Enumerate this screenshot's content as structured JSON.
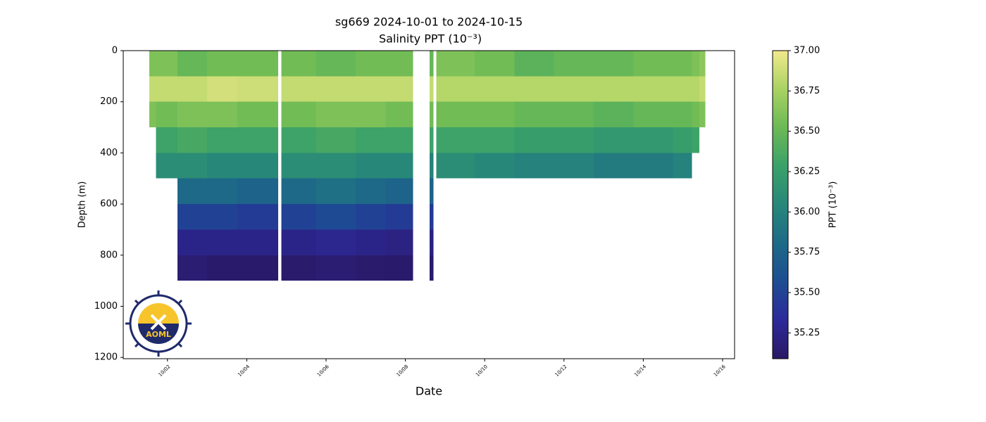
{
  "chart_data": {
    "type": "section",
    "title": "sg669 2024-10-01 to 2024-10-15",
    "subtitle": "Salinity PPT (10⁻³)",
    "x_label": "Date",
    "y_label": "Depth (m)",
    "colorbar_label": "PPT (10⁻³)",
    "xlim": [
      "2024-09-30T21:15",
      "2024-10-16T07:15"
    ],
    "xticks": [
      {
        "value": "2024-10-02",
        "label": "10/02"
      },
      {
        "value": "2024-10-04",
        "label": "10/04"
      },
      {
        "value": "2024-10-06",
        "label": "10/06"
      },
      {
        "value": "2024-10-08",
        "label": "10/08"
      },
      {
        "value": "2024-10-10",
        "label": "10/10"
      },
      {
        "value": "2024-10-12",
        "label": "10/12"
      },
      {
        "value": "2024-10-14",
        "label": "10/14"
      },
      {
        "value": "2024-10-16",
        "label": "10/16"
      }
    ],
    "ylim": [
      0,
      1205
    ],
    "y_inverted": true,
    "yticks": [
      0,
      200,
      400,
      600,
      800,
      1000,
      1200
    ],
    "clim": [
      35.09,
      37.0
    ],
    "cticks": [
      {
        "value": 35.25,
        "label": "35.25"
      },
      {
        "value": 35.5,
        "label": "35.50"
      },
      {
        "value": 35.75,
        "label": "35.75"
      },
      {
        "value": 36.0,
        "label": "36.00"
      },
      {
        "value": 36.25,
        "label": "36.25"
      },
      {
        "value": 36.5,
        "label": "36.50"
      },
      {
        "value": 36.75,
        "label": "36.75"
      },
      {
        "value": 37.0,
        "label": "37.00"
      }
    ],
    "colormap": [
      "#2a1864",
      "#2c2a9a",
      "#1d4c92",
      "#1d6a87",
      "#27877a",
      "#3aa169",
      "#6bb955",
      "#a9d262",
      "#f2e98c"
    ],
    "depth_bins": [
      0,
      100,
      200,
      300,
      400,
      500,
      600,
      700,
      800,
      900
    ],
    "columns": [
      {
        "start": "2024-10-01T13:00",
        "end": "2024-10-01T17:00",
        "values": [
          36.6,
          36.85,
          36.6,
          null,
          null,
          null,
          null,
          null,
          null
        ]
      },
      {
        "start": "2024-10-01T17:00",
        "end": "2024-10-02T06:00",
        "values": [
          36.6,
          36.85,
          36.55,
          36.3,
          36.1,
          null,
          null,
          null,
          null
        ]
      },
      {
        "start": "2024-10-02T06:00",
        "end": "2024-10-03T00:00",
        "values": [
          36.5,
          36.85,
          36.6,
          36.35,
          36.1,
          35.8,
          35.5,
          35.25,
          35.15
        ]
      },
      {
        "start": "2024-10-03T00:00",
        "end": "2024-10-03T18:00",
        "values": [
          36.55,
          36.9,
          36.6,
          36.3,
          36.05,
          35.8,
          35.5,
          35.25,
          35.12
        ]
      },
      {
        "start": "2024-10-03T18:00",
        "end": "2024-10-04T19:00",
        "values": [
          36.55,
          36.88,
          36.55,
          36.3,
          36.05,
          35.75,
          35.45,
          35.25,
          35.12
        ]
      },
      {
        "start": "2024-10-04T21:00",
        "end": "2024-10-05T18:00",
        "values": [
          36.55,
          36.85,
          36.55,
          36.3,
          36.1,
          35.8,
          35.5,
          35.25,
          35.13
        ]
      },
      {
        "start": "2024-10-05T18:00",
        "end": "2024-10-06T18:00",
        "values": [
          36.5,
          36.85,
          36.6,
          36.35,
          36.1,
          35.85,
          35.55,
          35.28,
          35.15
        ]
      },
      {
        "start": "2024-10-06T18:00",
        "end": "2024-10-07T12:00",
        "values": [
          36.55,
          36.85,
          36.6,
          36.3,
          36.05,
          35.8,
          35.5,
          35.25,
          35.13
        ]
      },
      {
        "start": "2024-10-07T12:00",
        "end": "2024-10-08T04:40",
        "values": [
          36.55,
          36.85,
          36.55,
          36.3,
          36.05,
          35.75,
          35.45,
          35.22,
          35.12
        ]
      },
      {
        "start": "2024-10-08T14:40",
        "end": "2024-10-08T17:00",
        "values": [
          36.5,
          36.85,
          36.55,
          36.3,
          36.0,
          35.75,
          35.45,
          35.22,
          35.12
        ]
      },
      {
        "start": "2024-10-08T18:40",
        "end": "2024-10-09T18:00",
        "values": [
          36.6,
          36.8,
          36.55,
          36.3,
          36.1,
          null,
          null,
          null,
          null
        ]
      },
      {
        "start": "2024-10-09T18:00",
        "end": "2024-10-10T18:00",
        "values": [
          36.55,
          36.8,
          36.55,
          36.3,
          36.05,
          null,
          null,
          null,
          null
        ]
      },
      {
        "start": "2024-10-10T18:00",
        "end": "2024-10-11T18:00",
        "values": [
          36.45,
          36.8,
          36.5,
          36.25,
          36.0,
          null,
          null,
          null,
          null
        ]
      },
      {
        "start": "2024-10-11T18:00",
        "end": "2024-10-12T18:00",
        "values": [
          36.5,
          36.8,
          36.5,
          36.25,
          36.0,
          null,
          null,
          null,
          null
        ]
      },
      {
        "start": "2024-10-12T18:00",
        "end": "2024-10-13T18:00",
        "values": [
          36.5,
          36.8,
          36.45,
          36.2,
          35.95,
          null,
          null,
          null,
          null
        ]
      },
      {
        "start": "2024-10-13T18:00",
        "end": "2024-10-14T18:00",
        "values": [
          36.55,
          36.8,
          36.5,
          36.2,
          35.95,
          null,
          null,
          null,
          null
        ]
      },
      {
        "start": "2024-10-14T18:00",
        "end": "2024-10-15T05:30",
        "values": [
          36.55,
          36.8,
          36.5,
          36.25,
          36.0,
          null,
          null,
          null,
          null
        ]
      },
      {
        "start": "2024-10-15T05:30",
        "end": "2024-10-15T10:00",
        "values": [
          36.6,
          36.8,
          36.55,
          36.3,
          null,
          null,
          null,
          null,
          null
        ]
      },
      {
        "start": "2024-10-15T10:00",
        "end": "2024-10-15T13:30",
        "values": [
          36.65,
          36.85,
          36.6,
          null,
          null,
          null,
          null,
          null,
          null
        ]
      }
    ]
  },
  "logo": {
    "text": "AOML"
  }
}
